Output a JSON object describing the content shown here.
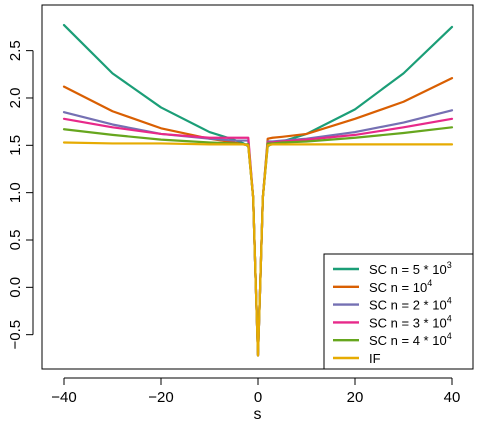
{
  "chart_data": {
    "type": "line",
    "title": "",
    "xlabel": "s",
    "ylabel": "",
    "xlim": [
      -40,
      40
    ],
    "ylim": [
      -0.72,
      2.85
    ],
    "xticks": [
      -40,
      -20,
      0,
      20,
      40
    ],
    "yticks": [
      -0.5,
      0.0,
      0.5,
      1.0,
      1.5,
      2.0,
      2.5
    ],
    "xtick_labels": [
      "−40",
      "−20",
      "0",
      "20",
      "40"
    ],
    "ytick_labels": [
      "−0.5",
      "0.0",
      "0.5",
      "1.0",
      "1.5",
      "2.0",
      "2.5"
    ],
    "grid": false,
    "legend_position": "bottom-right",
    "x": [
      -40,
      -30,
      -20,
      -10,
      -5,
      -3,
      -2,
      -1,
      -0.5,
      0,
      0.5,
      1,
      2,
      3,
      5,
      10,
      20,
      30,
      40
    ],
    "series": [
      {
        "name": "SC n = 5 * 10^3",
        "legend_base": "SC n = 5 * 10",
        "legend_exp": "3",
        "color": "#1b9e77",
        "values": [
          2.77,
          2.26,
          1.9,
          1.64,
          1.56,
          1.52,
          1.49,
          0.95,
          0.1,
          -0.72,
          0.1,
          0.95,
          1.49,
          1.52,
          1.54,
          1.62,
          1.88,
          2.26,
          2.75
        ]
      },
      {
        "name": "SC n = 10^4",
        "legend_base": "SC n = 10",
        "legend_exp": "4",
        "color": "#d95f02",
        "values": [
          2.12,
          1.86,
          1.68,
          1.57,
          1.53,
          1.51,
          1.5,
          0.95,
          0.1,
          -0.72,
          0.1,
          0.95,
          1.57,
          1.58,
          1.59,
          1.62,
          1.78,
          1.96,
          2.21
        ]
      },
      {
        "name": "SC n = 2 * 10^4",
        "legend_base": "SC n = 2 * 10",
        "legend_exp": "4",
        "color": "#7570b3",
        "values": [
          1.85,
          1.72,
          1.62,
          1.57,
          1.55,
          1.55,
          1.55,
          0.95,
          0.1,
          -0.72,
          0.1,
          0.95,
          1.54,
          1.54,
          1.55,
          1.57,
          1.64,
          1.74,
          1.87
        ]
      },
      {
        "name": "SC n = 3 * 10^4",
        "legend_base": "SC n = 3 * 10",
        "legend_exp": "4",
        "color": "#e7298a",
        "values": [
          1.78,
          1.69,
          1.62,
          1.58,
          1.58,
          1.58,
          1.58,
          0.95,
          0.1,
          -0.72,
          0.1,
          0.95,
          1.53,
          1.53,
          1.54,
          1.56,
          1.61,
          1.69,
          1.78
        ]
      },
      {
        "name": "SC n = 4 * 10^4",
        "legend_base": "SC n = 4 * 10",
        "legend_exp": "4",
        "color": "#66a61e",
        "values": [
          1.67,
          1.61,
          1.56,
          1.53,
          1.52,
          1.51,
          1.51,
          0.95,
          0.1,
          -0.72,
          0.1,
          0.95,
          1.52,
          1.52,
          1.53,
          1.54,
          1.58,
          1.63,
          1.69
        ]
      },
      {
        "name": "IF",
        "legend_base": "IF",
        "legend_exp": "",
        "color": "#e6ab02",
        "values": [
          1.53,
          1.52,
          1.52,
          1.51,
          1.51,
          1.51,
          1.5,
          0.95,
          0.1,
          -0.72,
          0.1,
          0.95,
          1.5,
          1.51,
          1.51,
          1.51,
          1.51,
          1.51,
          1.51
        ]
      }
    ]
  }
}
